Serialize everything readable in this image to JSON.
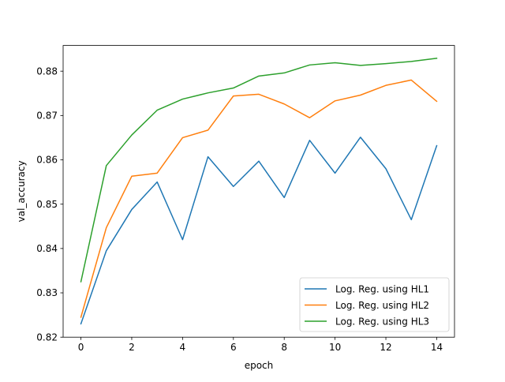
{
  "chart_data": {
    "type": "line",
    "xlabel": "epoch",
    "ylabel": "val_accuracy",
    "xlim": [
      -0.7,
      14.7
    ],
    "ylim": [
      0.82,
      0.8858
    ],
    "xticks": [
      0,
      2,
      4,
      6,
      8,
      10,
      12,
      14
    ],
    "yticks": [
      0.82,
      0.83,
      0.84,
      0.85,
      0.86,
      0.87,
      0.88
    ],
    "grid": false,
    "legend_position": "lower-right",
    "x": [
      0,
      1,
      2,
      3,
      4,
      5,
      6,
      7,
      8,
      9,
      10,
      11,
      12,
      13,
      14
    ],
    "series": [
      {
        "name": "Log. Reg. using HL1",
        "color": "#1f77b4",
        "values": [
          0.823,
          0.8395,
          0.8488,
          0.855,
          0.842,
          0.8607,
          0.854,
          0.8597,
          0.8515,
          0.8644,
          0.857,
          0.8651,
          0.858,
          0.8465,
          0.8632
        ]
      },
      {
        "name": "Log. Reg. using HL2",
        "color": "#ff7f0e",
        "values": [
          0.8245,
          0.8447,
          0.8563,
          0.857,
          0.865,
          0.8667,
          0.8744,
          0.8748,
          0.8726,
          0.8695,
          0.8733,
          0.8746,
          0.8768,
          0.878,
          0.8732
        ]
      },
      {
        "name": "Log. Reg. using HL3",
        "color": "#2ca02c",
        "values": [
          0.8325,
          0.8587,
          0.8656,
          0.8712,
          0.8737,
          0.8751,
          0.8762,
          0.8789,
          0.8796,
          0.8814,
          0.8819,
          0.8813,
          0.8817,
          0.8822,
          0.8829
        ]
      }
    ]
  }
}
